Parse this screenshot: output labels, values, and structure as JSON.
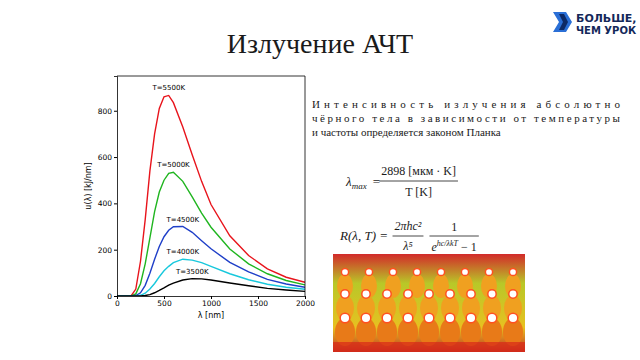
{
  "slide": {
    "title": "Излучение АЧТ",
    "logo": [
      "БОЛЬШЕ,",
      "ЧЕМ УРОК"
    ],
    "text": [
      "Интенсивность излучения абсолютно",
      "чёрного тела в зависимости от температуры",
      "и частоты определяется законом Планка"
    ],
    "formula_1": {
      "lhs": "λ",
      "lhs_sub": "max",
      "eq": "=",
      "num": "2898 [мкм · K]",
      "den": "T [K]"
    },
    "formula_2": {
      "lhs": "R(λ, T) =",
      "num_1": "2πhc²",
      "den_1": "λ⁵",
      "num_2": "1",
      "den_2_base": "e",
      "den_2_exp": "hc/λkT",
      "den_2_tail": " − 1"
    }
  },
  "chart_data": {
    "type": "line",
    "xlabel": "λ [nm]",
    "ylabel": "u(λ) [kJ/nm]",
    "x": [
      0,
      150,
      200,
      250,
      300,
      350,
      400,
      450,
      500,
      550,
      600,
      700,
      800,
      900,
      1000,
      1200,
      1400,
      1600,
      1800,
      2000
    ],
    "series": [
      {
        "name": "T=5500K",
        "color": "#e8141c",
        "values": [
          0,
          0,
          30,
          150,
          330,
          540,
          700,
          810,
          860,
          866,
          835,
          730,
          610,
          495,
          395,
          260,
          175,
          117,
          81,
          59
        ]
      },
      {
        "name": "T=5000K",
        "color": "#1fb51f",
        "values": [
          0,
          0,
          9,
          53,
          139,
          251,
          364,
          449,
          500,
          530,
          534,
          495,
          428,
          358,
          297,
          203,
          139,
          96,
          67,
          48
        ]
      },
      {
        "name": "T=4500K",
        "color": "#1f3fc8",
        "values": [
          0,
          0,
          2,
          14,
          46,
          98,
          159,
          214,
          256,
          284,
          299,
          300,
          275,
          239,
          204,
          145,
          104,
          72,
          52,
          38
        ]
      },
      {
        "name": "T=4000K",
        "color": "#18c8dc",
        "values": [
          0,
          0,
          0,
          3,
          12,
          30,
          54,
          83,
          109,
          128,
          144,
          159,
          155,
          144,
          128,
          96,
          70,
          51,
          38,
          29
        ]
      },
      {
        "name": "T=3500K",
        "color": "#000000",
        "values": [
          0,
          0,
          0,
          0.3,
          2,
          6,
          14,
          24,
          35,
          47,
          56,
          69,
          75,
          74,
          69,
          56,
          44,
          33,
          26,
          20
        ]
      }
    ],
    "xlim": [
      0,
      2000
    ],
    "ylim": [
      0,
      950
    ],
    "xticks": [
      0,
      500,
      1000,
      1500,
      2000
    ],
    "yticks": [
      0,
      200,
      400,
      600,
      800
    ],
    "grid": false
  }
}
